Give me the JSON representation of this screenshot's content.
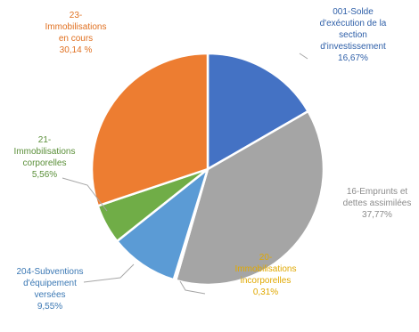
{
  "chart_data": {
    "type": "pie",
    "title": "",
    "legend": "none",
    "start_angle_deg": 0,
    "direction": "clockwise",
    "slices": [
      {
        "label": [
          "001-Solde",
          "d'exécution de la",
          "section",
          "d'investissement"
        ],
        "value_label": "16,67%",
        "value": 16.67,
        "color": "#4472c4",
        "label_color": "#2e5fa8"
      },
      {
        "label": [
          "16-Emprunts et",
          "dettes assimilées"
        ],
        "value_label": "37,77%",
        "value": 37.77,
        "color": "#a5a5a5",
        "label_color": "#8c8c8c"
      },
      {
        "label": [
          "20-",
          "Immobilisations",
          "incorporelles"
        ],
        "value_label": "0,31%",
        "value": 0.31,
        "color": "#ffc000",
        "label_color": "#e0a800"
      },
      {
        "label": [
          "204-Subventions",
          "d'équipement",
          "versées"
        ],
        "value_label": "9,55%",
        "value": 9.55,
        "color": "#5b9bd5",
        "label_color": "#3b78b4"
      },
      {
        "label": [
          "21-",
          "Immobilisations",
          "corporelles"
        ],
        "value_label": "5,56%",
        "value": 5.56,
        "color": "#70ad47",
        "label_color": "#5a8f38"
      },
      {
        "label": [
          "23-",
          "Immobilisations",
          "en cours"
        ],
        "value_label": "30,14 %",
        "value": 30.14,
        "color": "#ed7d31",
        "label_color": "#e07020"
      }
    ]
  }
}
